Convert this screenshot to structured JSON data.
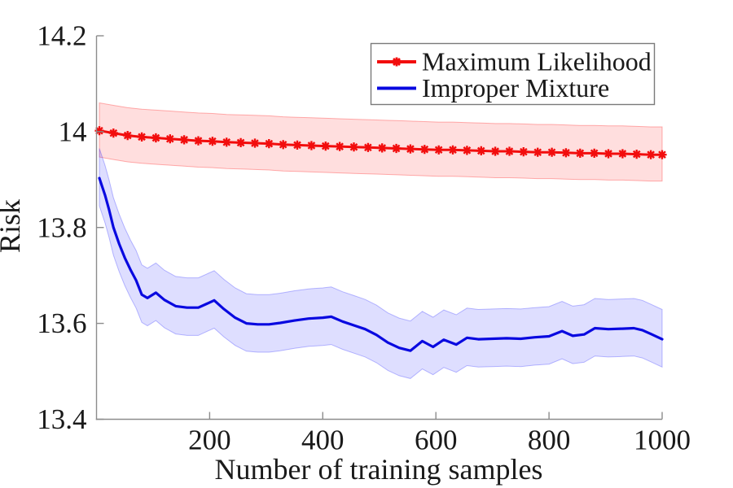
{
  "chart_data": {
    "type": "line",
    "title": "",
    "xlabel": "Number of training samples",
    "ylabel": "Risk",
    "xlim": [
      0,
      1000
    ],
    "ylim": [
      13.4,
      14.2
    ],
    "grid": false,
    "axis_color": "#8c8c8c",
    "text_color": "#1a1a1a",
    "x_ticks": {
      "values": [
        200,
        400,
        600,
        800,
        1000
      ],
      "labels": [
        "200",
        "400",
        "600",
        "800",
        "1000"
      ]
    },
    "y_ticks": {
      "values": [
        13.4,
        13.6,
        13.8,
        14,
        14.2
      ],
      "labels": [
        "13.4",
        "13.6",
        "13.8",
        "14",
        "14.2"
      ]
    },
    "legend": {
      "position": "top-right",
      "background": "#ffffff",
      "border_color": "#7a7a7a"
    },
    "series": [
      {
        "name": "Maximum Likelihood",
        "color": "#f20d0d",
        "line_width": 3,
        "marker": "asterisk",
        "band_fill": "rgba(255,0,0,0.13)",
        "band_edge": "rgba(255,0,0,0.30)",
        "band_upper_offset": 0.058,
        "band_lower_offset": 0.055,
        "x": [
          5,
          30,
          55,
          80,
          105,
          130,
          155,
          180,
          205,
          230,
          255,
          280,
          305,
          330,
          355,
          380,
          405,
          430,
          455,
          480,
          505,
          530,
          555,
          580,
          605,
          630,
          655,
          680,
          705,
          730,
          755,
          780,
          805,
          830,
          855,
          880,
          905,
          930,
          955,
          980,
          1000
        ],
        "y": [
          14.002,
          13.997,
          13.992,
          13.989,
          13.987,
          13.985,
          13.983,
          13.981,
          13.98,
          13.978,
          13.977,
          13.976,
          13.975,
          13.973,
          13.972,
          13.971,
          13.97,
          13.969,
          13.968,
          13.967,
          13.966,
          13.965,
          13.964,
          13.963,
          13.962,
          13.962,
          13.961,
          13.96,
          13.959,
          13.959,
          13.958,
          13.957,
          13.957,
          13.956,
          13.955,
          13.955,
          13.954,
          13.954,
          13.953,
          13.952,
          13.952
        ]
      },
      {
        "name": "Improper Mixture",
        "color": "#0909e0",
        "line_width": 3.2,
        "marker": "none",
        "band_fill": "rgba(0,0,255,0.13)",
        "band_edge": "rgba(0,0,255,0.26)",
        "band_upper_offset": 0.062,
        "band_lower_offset": 0.058,
        "x": [
          5,
          15,
          22,
          30,
          40,
          50,
          60,
          70,
          80,
          90,
          105,
          120,
          140,
          160,
          180,
          195,
          208,
          225,
          245,
          265,
          285,
          305,
          325,
          350,
          375,
          400,
          415,
          435,
          455,
          475,
          495,
          515,
          535,
          555,
          576,
          595,
          614,
          636,
          655,
          675,
          700,
          725,
          750,
          775,
          800,
          823,
          842,
          862,
          881,
          905,
          930,
          950,
          965,
          980,
          1000
        ],
        "y": [
          13.903,
          13.868,
          13.838,
          13.8,
          13.766,
          13.737,
          13.712,
          13.69,
          13.66,
          13.653,
          13.664,
          13.649,
          13.636,
          13.633,
          13.633,
          13.641,
          13.648,
          13.63,
          13.612,
          13.6,
          13.598,
          13.598,
          13.601,
          13.606,
          13.61,
          13.612,
          13.614,
          13.604,
          13.596,
          13.588,
          13.576,
          13.56,
          13.549,
          13.543,
          13.563,
          13.551,
          13.566,
          13.556,
          13.57,
          13.567,
          13.568,
          13.569,
          13.568,
          13.571,
          13.573,
          13.584,
          13.574,
          13.577,
          13.59,
          13.588,
          13.589,
          13.59,
          13.586,
          13.578,
          13.567
        ]
      }
    ]
  }
}
